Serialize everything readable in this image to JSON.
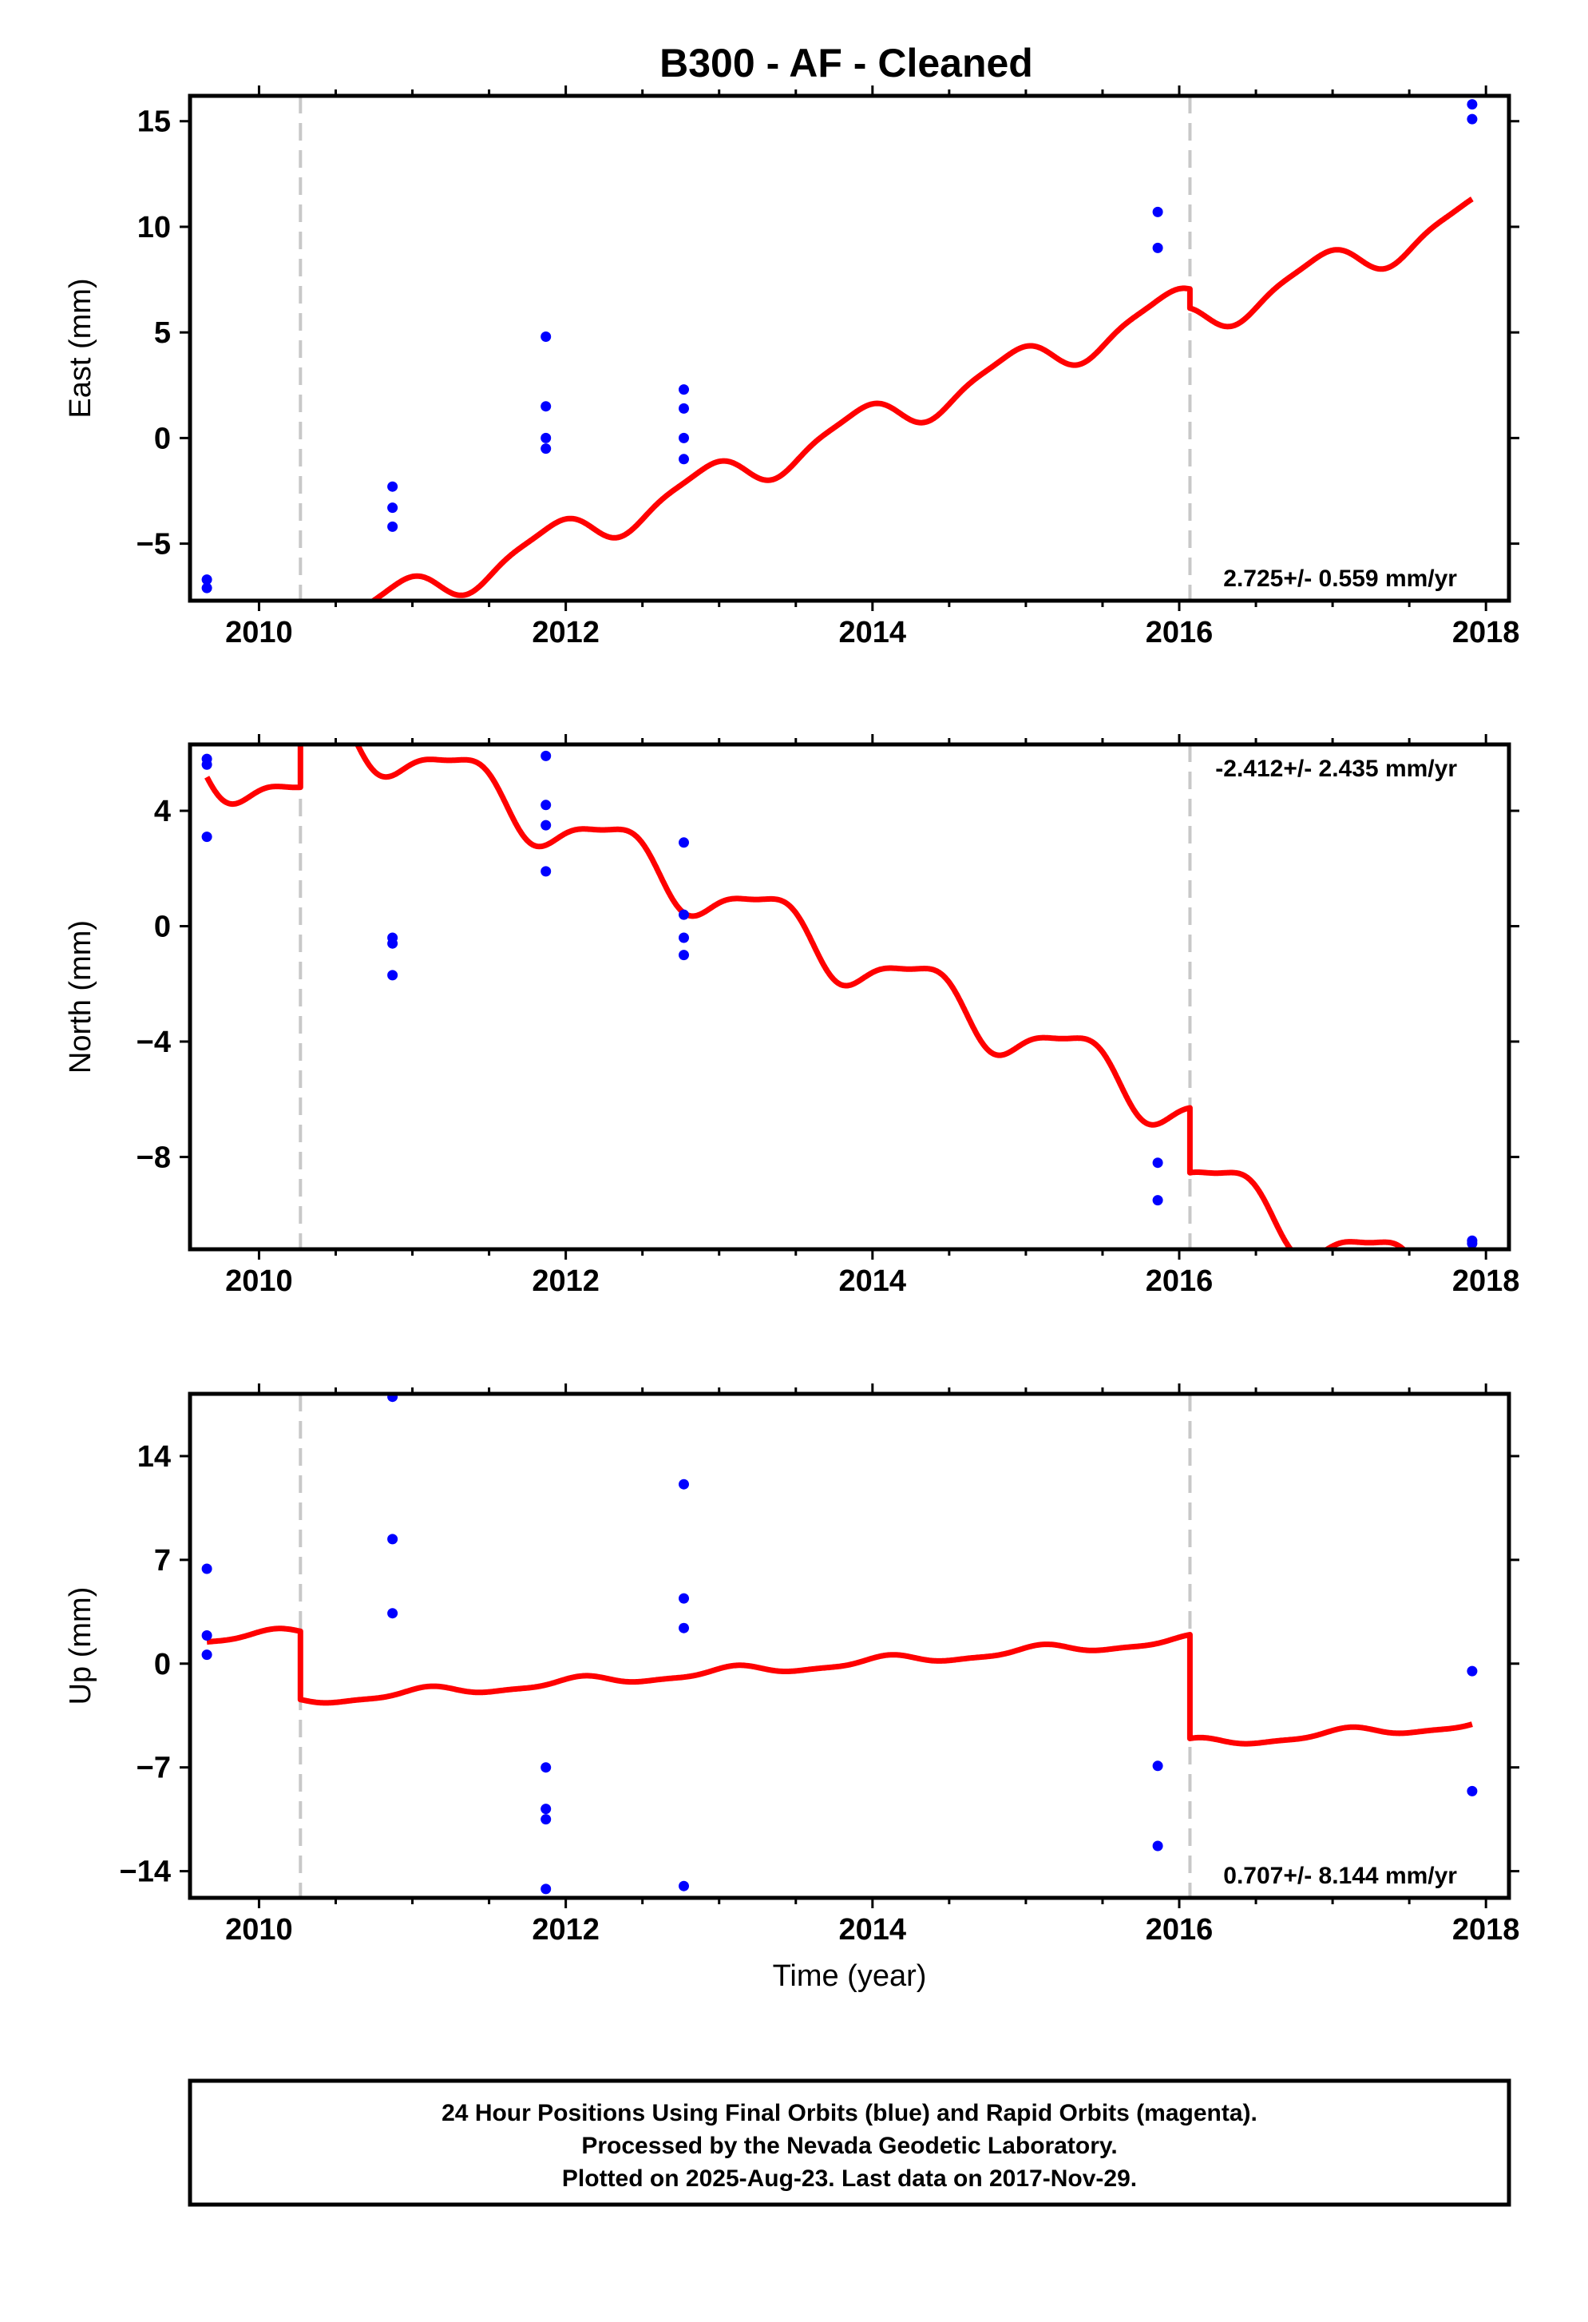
{
  "title": "B300  - AF - Cleaned",
  "colors": {
    "model_line": "#ff0000",
    "final_orbit_points": "#0000ff",
    "rapid_orbit_points": "#ff00ff",
    "offset_lines": "#c8c8c8",
    "frame": "#000000"
  },
  "footer": {
    "line1": "24 Hour Positions Using Final Orbits (blue) and Rapid Orbits (magenta).",
    "line2": "Processed by the Nevada Geodetic Laboratory.",
    "line3": "Plotted on 2025-Aug-23. Last data on 2017-Nov-29."
  },
  "chart_data": [
    {
      "type": "scatter",
      "ylabel": "East (mm)",
      "xlabel": "",
      "rate_label": "2.725+/- 0.559 mm/yr",
      "rate_position": "bottom-right",
      "xlim": [
        2009.55,
        2018.15
      ],
      "ylim": [
        -7.7,
        16.2
      ],
      "xticks": [
        2010,
        2012,
        2014,
        2016,
        2018
      ],
      "yticks": [
        -5,
        0,
        5,
        10,
        15
      ],
      "offset_epochs": [
        2010.27,
        2016.07
      ],
      "model": {
        "rate": 2.725,
        "intercept": 0.0,
        "t0": 2012.0,
        "annual_amp": 0.85,
        "annual_phase": 2.2,
        "semiannual_amp": 0.2,
        "semiannual_phase": 0.7,
        "segment_offsets": [
          -6.2,
          -4.65,
          -5.55
        ]
      },
      "points": [
        [
          2009.66,
          -6.7
        ],
        [
          2009.66,
          -7.1
        ],
        [
          2010.87,
          -2.3
        ],
        [
          2010.87,
          -3.3
        ],
        [
          2010.87,
          -4.2
        ],
        [
          2011.87,
          4.8
        ],
        [
          2011.87,
          1.5
        ],
        [
          2011.87,
          0.0
        ],
        [
          2011.87,
          -0.5
        ],
        [
          2012.77,
          2.3
        ],
        [
          2012.77,
          1.4
        ],
        [
          2012.77,
          0.0
        ],
        [
          2012.77,
          -1.0
        ],
        [
          2015.86,
          10.7
        ],
        [
          2015.86,
          9.0
        ],
        [
          2017.91,
          15.8
        ],
        [
          2017.91,
          15.1
        ]
      ]
    },
    {
      "type": "scatter",
      "ylabel": "North (mm)",
      "xlabel": "",
      "rate_label": "-2.412+/- 2.435 mm/yr",
      "rate_position": "top-right",
      "xlim": [
        2009.55,
        2018.15
      ],
      "ylim": [
        -11.2,
        6.3
      ],
      "xticks": [
        2010,
        2012,
        2014,
        2016,
        2018
      ],
      "yticks": [
        -8,
        -4,
        0,
        4
      ],
      "offset_epochs": [
        2010.27,
        2016.07
      ],
      "model": {
        "rate": -2.412,
        "intercept": 0.0,
        "t0": 2012.0,
        "annual_amp": 0.9,
        "annual_phase": -0.5,
        "semiannual_amp": 0.25,
        "semiannual_phase": 1.5,
        "segment_offsets": [
          0.05,
          3.4,
          1.15
        ]
      },
      "points": [
        [
          2009.66,
          5.8
        ],
        [
          2009.66,
          5.6
        ],
        [
          2009.66,
          3.1
        ],
        [
          2010.87,
          -0.4
        ],
        [
          2010.87,
          -0.6
        ],
        [
          2010.87,
          -1.7
        ],
        [
          2011.87,
          5.9
        ],
        [
          2011.87,
          4.2
        ],
        [
          2011.87,
          3.5
        ],
        [
          2011.87,
          1.9
        ],
        [
          2012.77,
          2.9
        ],
        [
          2012.77,
          0.4
        ],
        [
          2012.77,
          -0.4
        ],
        [
          2012.77,
          -1.0
        ],
        [
          2015.86,
          -8.2
        ],
        [
          2015.86,
          -9.5
        ],
        [
          2017.91,
          -10.9
        ],
        [
          2017.91,
          -11.0
        ]
      ]
    },
    {
      "type": "scatter",
      "ylabel": "Up (mm)",
      "xlabel": "Time (year)",
      "rate_label": "0.707+/- 8.144 mm/yr",
      "rate_position": "bottom-right",
      "xlim": [
        2009.55,
        2018.15
      ],
      "ylim": [
        -15.8,
        18.2
      ],
      "xticks": [
        2010,
        2012,
        2014,
        2016,
        2018
      ],
      "yticks": [
        -14,
        -7,
        0,
        7,
        14
      ],
      "offset_epochs": [
        2010.27,
        2016.07
      ],
      "model": {
        "rate": 0.707,
        "intercept": 0.0,
        "t0": 2012.0,
        "annual_amp": 0.3,
        "annual_phase": 1.0,
        "semiannual_amp": 0.1,
        "semiannual_phase": 0.0,
        "segment_offsets": [
          3.3,
          -1.3,
          -8.3
        ]
      },
      "points": [
        [
          2009.66,
          6.4
        ],
        [
          2009.66,
          1.9
        ],
        [
          2009.66,
          0.6
        ],
        [
          2010.87,
          18.0
        ],
        [
          2010.87,
          8.4
        ],
        [
          2010.87,
          3.4
        ],
        [
          2011.87,
          -7.0
        ],
        [
          2011.87,
          -9.8
        ],
        [
          2011.87,
          -10.5
        ],
        [
          2011.87,
          -15.2
        ],
        [
          2012.77,
          12.1
        ],
        [
          2012.77,
          4.4
        ],
        [
          2012.77,
          2.4
        ],
        [
          2012.77,
          -15.0
        ],
        [
          2015.86,
          -6.9
        ],
        [
          2015.86,
          -12.3
        ],
        [
          2017.91,
          -0.5
        ],
        [
          2017.91,
          -8.6
        ]
      ]
    }
  ]
}
